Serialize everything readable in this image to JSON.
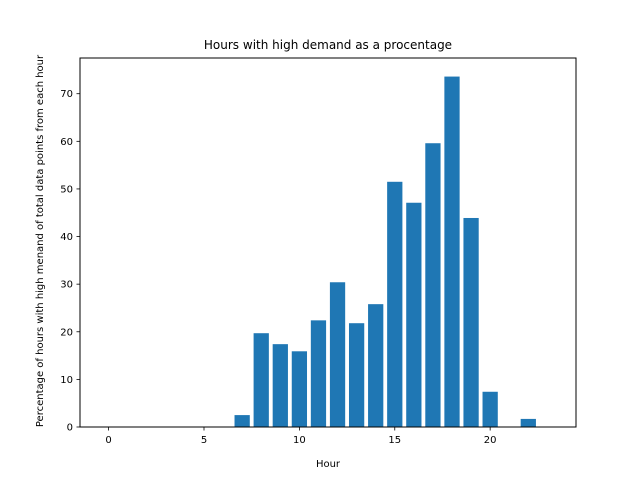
{
  "chart_data": {
    "type": "bar",
    "title": "Hours with high demand as a procentage",
    "xlabel": "Hour",
    "ylabel": "Percentage of hours with high menand of total data points from each hour",
    "xlim": [
      -1.5,
      24.5
    ],
    "ylim": [
      0,
      77.5
    ],
    "xticks": [
      0,
      5,
      10,
      15,
      20
    ],
    "yticks": [
      0,
      10,
      20,
      30,
      40,
      50,
      60,
      70
    ],
    "grid": false,
    "bar_color": "#1f77b4",
    "x": [
      0,
      1,
      2,
      3,
      4,
      5,
      6,
      7,
      8,
      9,
      10,
      11,
      12,
      13,
      14,
      15,
      16,
      17,
      18,
      19,
      20,
      21,
      22,
      23
    ],
    "values": [
      0,
      0,
      0,
      0,
      0,
      0,
      0,
      2.5,
      19.7,
      17.4,
      15.9,
      22.4,
      30.4,
      21.8,
      25.8,
      51.5,
      47.1,
      59.6,
      73.6,
      43.9,
      7.4,
      0,
      1.7,
      0
    ]
  }
}
